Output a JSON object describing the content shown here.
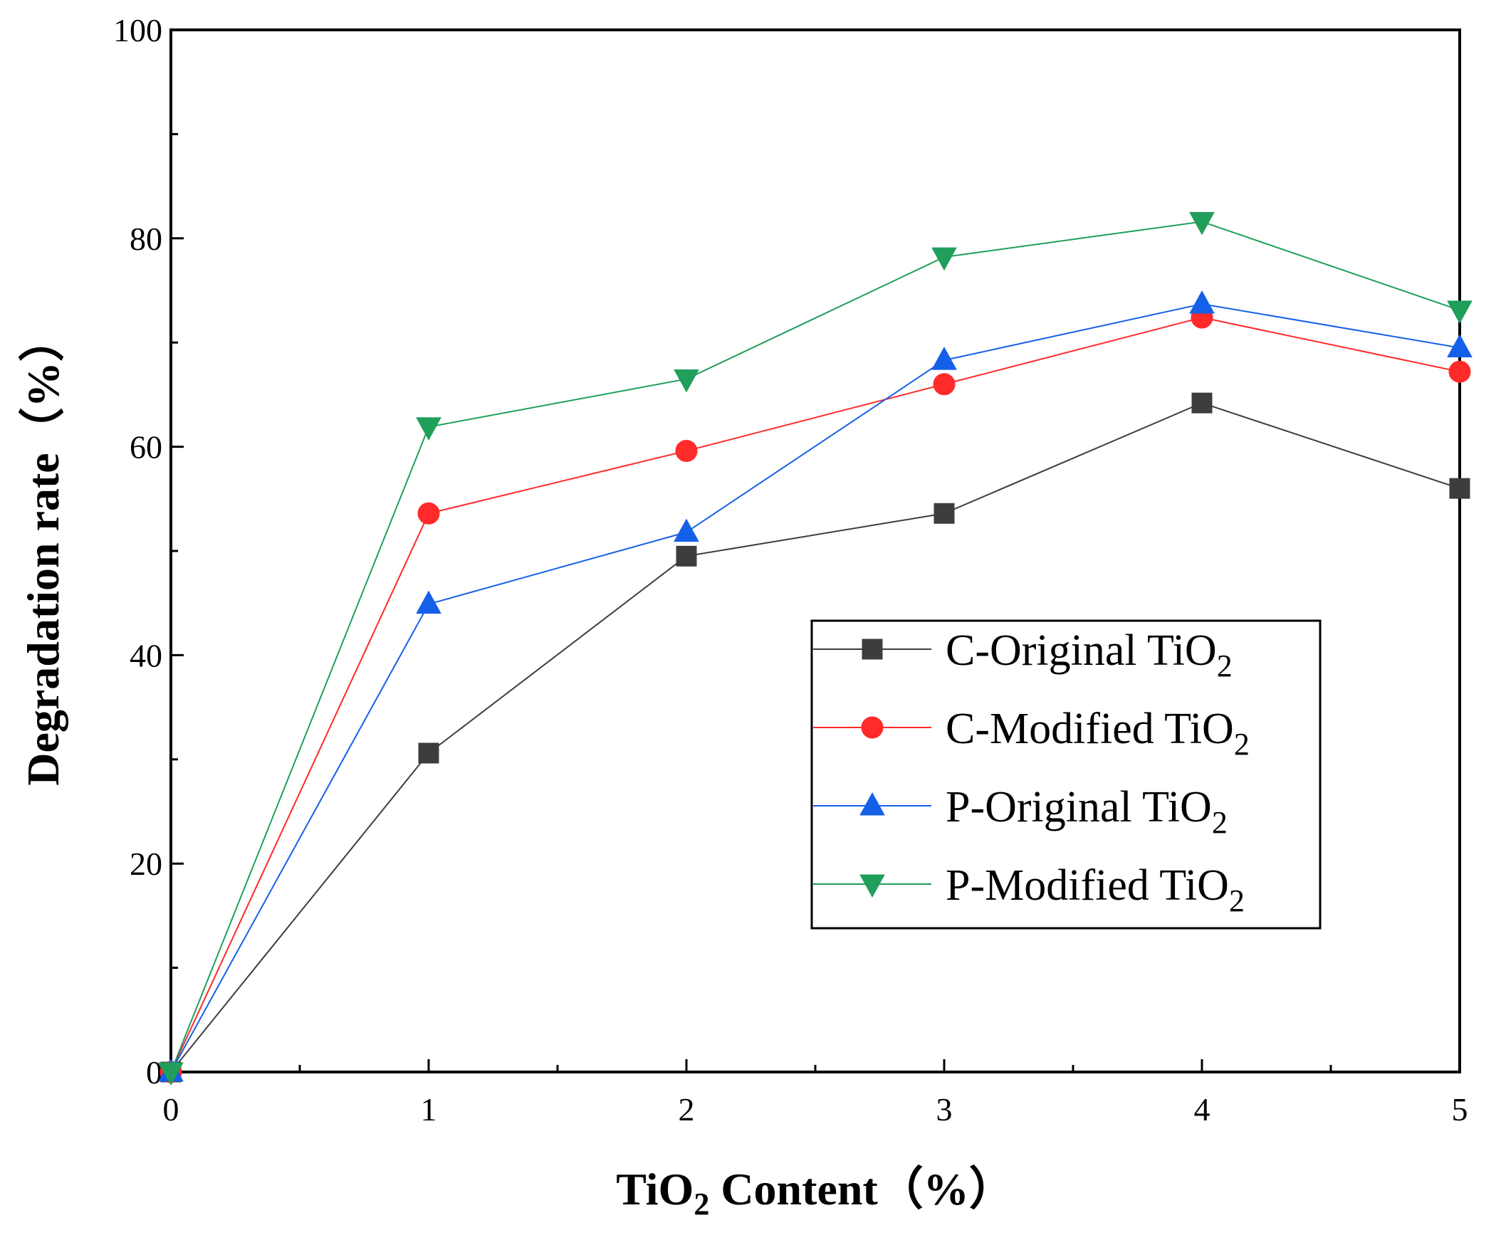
{
  "chart_data": {
    "type": "line",
    "title": "",
    "xlabel": {
      "pre": "TiO",
      "sub": "2",
      "post": " Content（%）"
    },
    "ylabel": "Degradation rate（%）",
    "x": [
      0,
      1,
      2,
      3,
      4,
      5
    ],
    "xlim": [
      0,
      5
    ],
    "ylim": [
      0,
      100
    ],
    "xticks": [
      "0",
      "1",
      "2",
      "3",
      "4",
      "5"
    ],
    "yticks": [
      "0",
      "20",
      "40",
      "60",
      "80",
      "100"
    ],
    "grid": false,
    "legend_position": "center-right",
    "series": [
      {
        "name": "C-Original TiO",
        "sub": "2",
        "marker": "square",
        "color": "#3d3d3d",
        "values": [
          0,
          30.6,
          49.5,
          53.6,
          64.2,
          56.0
        ]
      },
      {
        "name": "C-Modified TiO",
        "sub": "2",
        "marker": "circle",
        "color": "#ff2a2a",
        "values": [
          0,
          53.6,
          59.6,
          66.0,
          72.4,
          67.2
        ]
      },
      {
        "name": "P-Original TiO",
        "sub": "2",
        "marker": "triangle-up",
        "color": "#1560e8",
        "values": [
          0,
          44.9,
          51.8,
          68.3,
          73.7,
          69.5
        ]
      },
      {
        "name": "P-Modified TiO",
        "sub": "2",
        "marker": "triangle-down",
        "color": "#1f9f5a",
        "values": [
          0,
          61.9,
          66.5,
          78.2,
          81.6,
          73.1
        ]
      }
    ]
  }
}
